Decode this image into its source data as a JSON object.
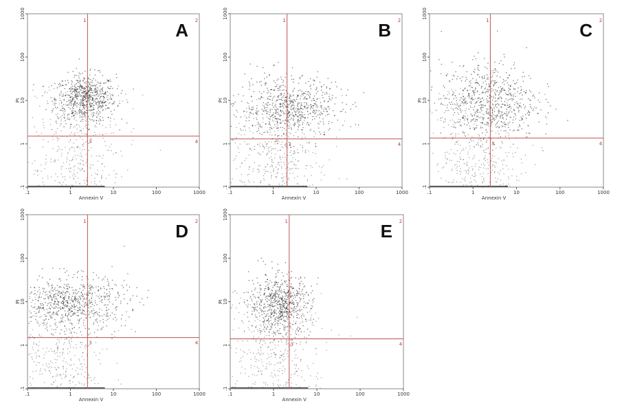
{
  "chart_data": [
    {
      "type": "scatter",
      "panel_label": "A",
      "xlabel": "Annexin V",
      "ylabel": "PI",
      "log_scale": true,
      "xlim": [
        0.1,
        1000
      ],
      "ylim": [
        0.1,
        1000
      ],
      "xticks": [
        {
          "value": 0.1,
          "label": ".1"
        },
        1,
        10,
        100,
        1000
      ],
      "yticks": [
        {
          "value": 0.1,
          "label": ".1"
        },
        1,
        10,
        100,
        1000
      ],
      "quadrant_x": 2.5,
      "quadrant_y": 1.5,
      "quadrant_labels": [
        "1",
        "2",
        "3",
        "4"
      ],
      "gate_color": "#c05050"
    },
    {
      "type": "scatter",
      "panel_label": "B",
      "xlabel": "Annexin V",
      "ylabel": "PI",
      "log_scale": true,
      "xlim": [
        0.1,
        1000
      ],
      "ylim": [
        0.1,
        1000
      ],
      "xticks": [
        {
          "value": 0.1,
          "label": ".1"
        },
        1,
        10,
        100,
        1000
      ],
      "yticks": [
        {
          "value": 0.1,
          "label": ".1"
        },
        1,
        10,
        100,
        1000
      ],
      "quadrant_x": 2.1,
      "quadrant_y": 1.3,
      "quadrant_labels": [
        "1",
        "2",
        "3",
        "4"
      ],
      "gate_color": "#c05050"
    },
    {
      "type": "scatter",
      "panel_label": "C",
      "xlabel": "Annexin V",
      "ylabel": "PI",
      "log_scale": true,
      "xlim": [
        0.1,
        1000
      ],
      "ylim": [
        0.1,
        1000
      ],
      "xticks": [
        {
          "value": 0.1,
          "label": ".1"
        },
        1,
        10,
        100,
        1000
      ],
      "yticks": [
        {
          "value": 0.1,
          "label": ".1"
        },
        1,
        10,
        100,
        1000
      ],
      "quadrant_x": 2.5,
      "quadrant_y": 1.35,
      "quadrant_labels": [
        "1",
        "2",
        "3",
        "4"
      ],
      "gate_color": "#c05050"
    },
    {
      "type": "scatter",
      "panel_label": "D",
      "xlabel": "Annexin V",
      "ylabel": "PI",
      "log_scale": true,
      "xlim": [
        0.1,
        1000
      ],
      "ylim": [
        0.1,
        1000
      ],
      "xticks": [
        {
          "value": 0.1,
          "label": ".1"
        },
        1,
        10,
        100,
        1000
      ],
      "yticks": [
        {
          "value": 0.1,
          "label": ".1"
        },
        1,
        10,
        100,
        1000
      ],
      "quadrant_x": 2.5,
      "quadrant_y": 1.5,
      "quadrant_labels": [
        "1",
        "2",
        "3",
        "4"
      ],
      "gate_color": "#c05050"
    },
    {
      "type": "scatter",
      "panel_label": "E",
      "xlabel": "Annexin V",
      "ylabel": "PI",
      "log_scale": true,
      "xlim": [
        0.1,
        1000
      ],
      "ylim": [
        0.1,
        1000
      ],
      "xticks": [
        {
          "value": 0.1,
          "label": ".1"
        },
        1,
        10,
        100,
        1000
      ],
      "yticks": [
        {
          "value": 0.1,
          "label": ".1"
        },
        1,
        10,
        100,
        1000
      ],
      "quadrant_x": 2.3,
      "quadrant_y": 1.4,
      "quadrant_labels": [
        "1",
        "2",
        "3",
        "4"
      ],
      "gate_color": "#c05050"
    }
  ]
}
